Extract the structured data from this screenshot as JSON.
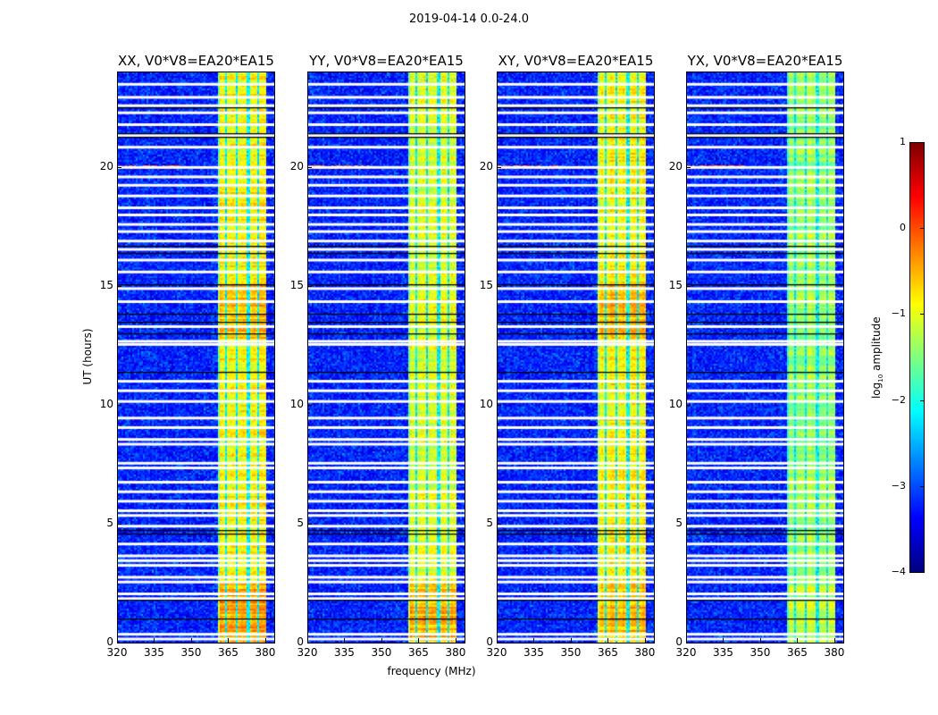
{
  "figure_title": "2019-04-14 0.0-24.0",
  "chart_data": {
    "type": "heatmap",
    "title": "2019-04-14 0.0-24.0",
    "xlabel": "frequency (MHz)",
    "ylabel": "UT (hours)",
    "xlim": [
      320,
      384
    ],
    "ylim": [
      0,
      24
    ],
    "xticks": [
      "320",
      "335",
      "350",
      "365",
      "380"
    ],
    "yticks": [
      "0",
      "5",
      "10",
      "15",
      "20"
    ],
    "panels": [
      {
        "title": "XX, V0*V8=EA20*EA15",
        "band_level": -0.9,
        "low_time_boost": 0.45,
        "mid_boost": 0.3
      },
      {
        "title": "YY, V0*V8=EA20*EA15",
        "band_level": -1.05,
        "low_time_boost": 0.5,
        "mid_boost": 0.1
      },
      {
        "title": "XY, V0*V8=EA20*EA15",
        "band_level": -0.9,
        "low_time_boost": 0.35,
        "mid_boost": 0.3
      },
      {
        "title": "YX, V0*V8=EA20*EA15",
        "band_level": -1.35,
        "low_time_boost": 0.2,
        "mid_boost": 0.0
      }
    ],
    "background_level": -3.2,
    "bright_band_mhz": [
      360.5,
      380
    ],
    "band_dropout_mhz": [
      364,
      368.5,
      373,
      377
    ],
    "flagged_rows_ut": [
      0.15,
      0.35,
      1.85,
      2.05,
      2.55,
      2.75,
      3.25,
      3.45,
      3.65,
      4.15,
      4.9,
      5.35,
      5.55,
      5.95,
      6.35,
      6.75,
      7.35,
      7.55,
      8.35,
      8.55,
      9.05,
      9.45,
      10.15,
      10.6,
      11.0,
      12.55,
      12.68,
      13.3,
      14.35,
      14.9,
      15.6,
      16.1,
      16.55,
      16.9,
      17.3,
      17.6,
      18.0,
      18.3,
      18.8,
      19.25,
      19.6,
      20.0,
      20.85,
      21.35,
      21.8,
      22.3,
      22.6,
      22.95,
      23.5
    ],
    "black_rows_ut": [
      1.0,
      1.8,
      4.6,
      4.75,
      11.4,
      13.0,
      13.5,
      13.85,
      15.1,
      16.4,
      16.7,
      21.3,
      21.45,
      22.55
    ],
    "colorbar": {
      "label_main": "log",
      "label_sub": "10",
      "label_rest": " amplitude",
      "range": [
        -4,
        1
      ],
      "ticks": [
        "1",
        "0",
        "−1",
        "−2",
        "−3",
        "−4"
      ],
      "colormap": "jet"
    }
  }
}
